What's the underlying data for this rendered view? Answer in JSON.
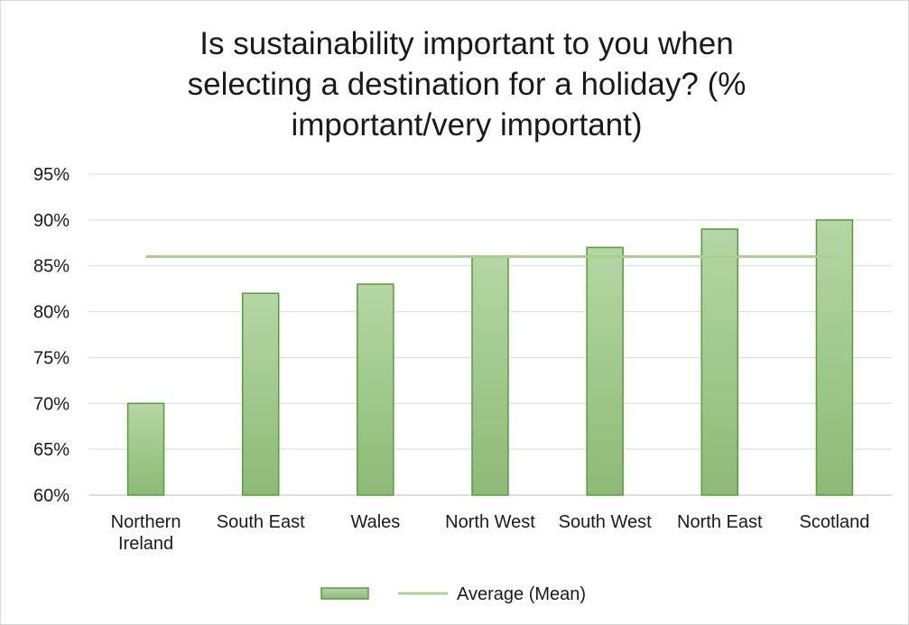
{
  "chart_data": {
    "type": "bar",
    "title_lines": [
      "Is sustainability important to you when",
      "selecting a destination for a holiday? (%",
      "important/very important)"
    ],
    "categories": [
      [
        "Northern",
        "Ireland"
      ],
      [
        "South East"
      ],
      [
        "Wales"
      ],
      [
        "North West"
      ],
      [
        "South West"
      ],
      [
        "North East"
      ],
      [
        "Scotland"
      ]
    ],
    "series": [
      {
        "values": [
          70,
          82,
          83,
          86,
          87,
          89,
          90
        ],
        "color": "#9dc88a",
        "border": "#5a9a3c"
      }
    ],
    "reference_line": {
      "name": "Average (Mean)",
      "value": 86,
      "color": "#a9d18e"
    },
    "ylim": [
      60,
      95
    ],
    "yticks": [
      60,
      65,
      70,
      75,
      80,
      85,
      90,
      95
    ],
    "ytick_format": "percent",
    "grid": true,
    "legend": "bottom",
    "legend_items": [
      {
        "type": "bar",
        "label": ""
      },
      {
        "type": "line",
        "label": "Average (Mean)"
      }
    ]
  }
}
